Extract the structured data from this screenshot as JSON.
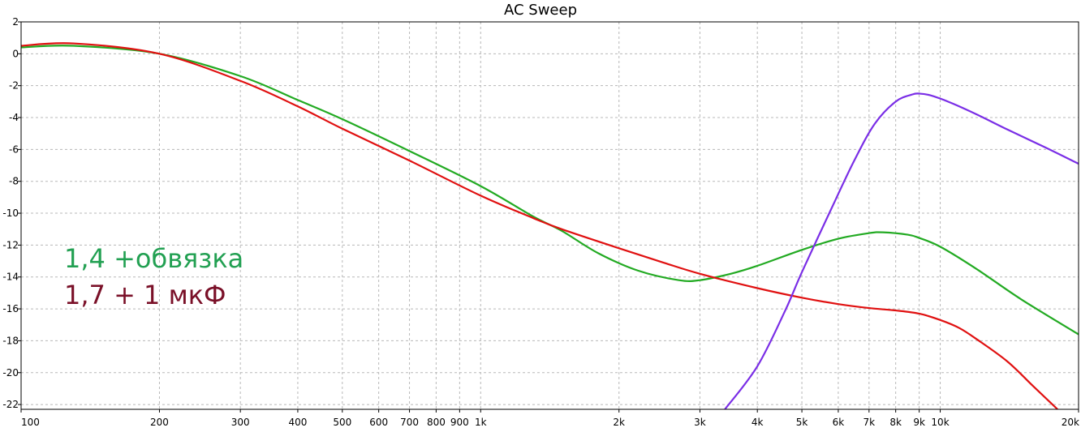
{
  "chart_data": {
    "type": "line",
    "title": "AC Sweep",
    "xscale": "log",
    "xlim": [
      100,
      20000
    ],
    "ylim": [
      -22.3,
      2
    ],
    "grid": true,
    "x_ticks": [
      {
        "value": 100,
        "label": "100"
      },
      {
        "value": 200,
        "label": "200"
      },
      {
        "value": 300,
        "label": "300"
      },
      {
        "value": 400,
        "label": "400"
      },
      {
        "value": 500,
        "label": "500"
      },
      {
        "value": 600,
        "label": "600"
      },
      {
        "value": 700,
        "label": "700"
      },
      {
        "value": 800,
        "label": "800"
      },
      {
        "value": 900,
        "label": "900"
      },
      {
        "value": 1000,
        "label": "1k"
      },
      {
        "value": 2000,
        "label": "2k"
      },
      {
        "value": 3000,
        "label": "3k"
      },
      {
        "value": 4000,
        "label": "4k"
      },
      {
        "value": 5000,
        "label": "5k"
      },
      {
        "value": 6000,
        "label": "6k"
      },
      {
        "value": 7000,
        "label": "7k"
      },
      {
        "value": 8000,
        "label": "8k"
      },
      {
        "value": 9000,
        "label": "9k"
      },
      {
        "value": 10000,
        "label": "10k"
      },
      {
        "value": 20000,
        "label": "20k"
      }
    ],
    "y_ticks": [
      {
        "value": 2,
        "label": "2"
      },
      {
        "value": 0,
        "label": "0"
      },
      {
        "value": -2,
        "label": "-2"
      },
      {
        "value": -4,
        "label": "-4"
      },
      {
        "value": -6,
        "label": "-6"
      },
      {
        "value": -8,
        "label": "-8"
      },
      {
        "value": -10,
        "label": "-10"
      },
      {
        "value": -12,
        "label": "-12"
      },
      {
        "value": -14,
        "label": "-14"
      },
      {
        "value": -16,
        "label": "-16"
      },
      {
        "value": -18,
        "label": "-18"
      },
      {
        "value": -20,
        "label": "-20"
      },
      {
        "value": -22,
        "label": "-22"
      }
    ],
    "series": [
      {
        "color": "#22aa22",
        "x": [
          100,
          130,
          200,
          300,
          400,
          500,
          700,
          1000,
          1300,
          1500,
          1800,
          2200,
          2700,
          3000,
          3500,
          4000,
          5000,
          6000,
          7000,
          7500,
          8500,
          9000,
          10000,
          12000,
          15000,
          20000
        ],
        "y": [
          0.4,
          0.5,
          0.0,
          -1.4,
          -2.9,
          -4.1,
          -6.1,
          -8.3,
          -10.2,
          -11.1,
          -12.5,
          -13.6,
          -14.2,
          -14.2,
          -13.8,
          -13.3,
          -12.3,
          -11.6,
          -11.25,
          -11.2,
          -11.35,
          -11.55,
          -12.1,
          -13.5,
          -15.4,
          -17.6
        ]
      },
      {
        "color": "#e01010",
        "x": [
          100,
          130,
          200,
          300,
          400,
          500,
          700,
          1000,
          1300,
          1500,
          2000,
          2500,
          3000,
          4000,
          5000,
          6000,
          7000,
          8000,
          9000,
          10000,
          11000,
          12000,
          14000,
          16000,
          18000
        ],
        "y": [
          0.5,
          0.65,
          0.0,
          -1.7,
          -3.3,
          -4.7,
          -6.7,
          -8.9,
          -10.3,
          -11.0,
          -12.2,
          -13.1,
          -13.8,
          -14.7,
          -15.3,
          -15.7,
          -15.95,
          -16.1,
          -16.3,
          -16.7,
          -17.2,
          -17.9,
          -19.3,
          -20.9,
          -22.3
        ]
      },
      {
        "color": "#7a2ee6",
        "x": [
          3400,
          4000,
          4600,
          5000,
          5800,
          6500,
          7200,
          8000,
          8700,
          9000,
          9500,
          10500,
          12000,
          14000,
          17000,
          20000
        ],
        "y": [
          -22.3,
          -19.6,
          -16.1,
          -13.7,
          -9.7,
          -6.7,
          -4.4,
          -3.0,
          -2.55,
          -2.5,
          -2.6,
          -3.05,
          -3.8,
          -4.75,
          -5.9,
          -6.9
        ]
      }
    ]
  },
  "annotations": [
    {
      "text": "1,4 +обвязка",
      "color": "#22a052"
    },
    {
      "text": "1,7 + 1 мкФ",
      "color": "#7a1028"
    }
  ]
}
